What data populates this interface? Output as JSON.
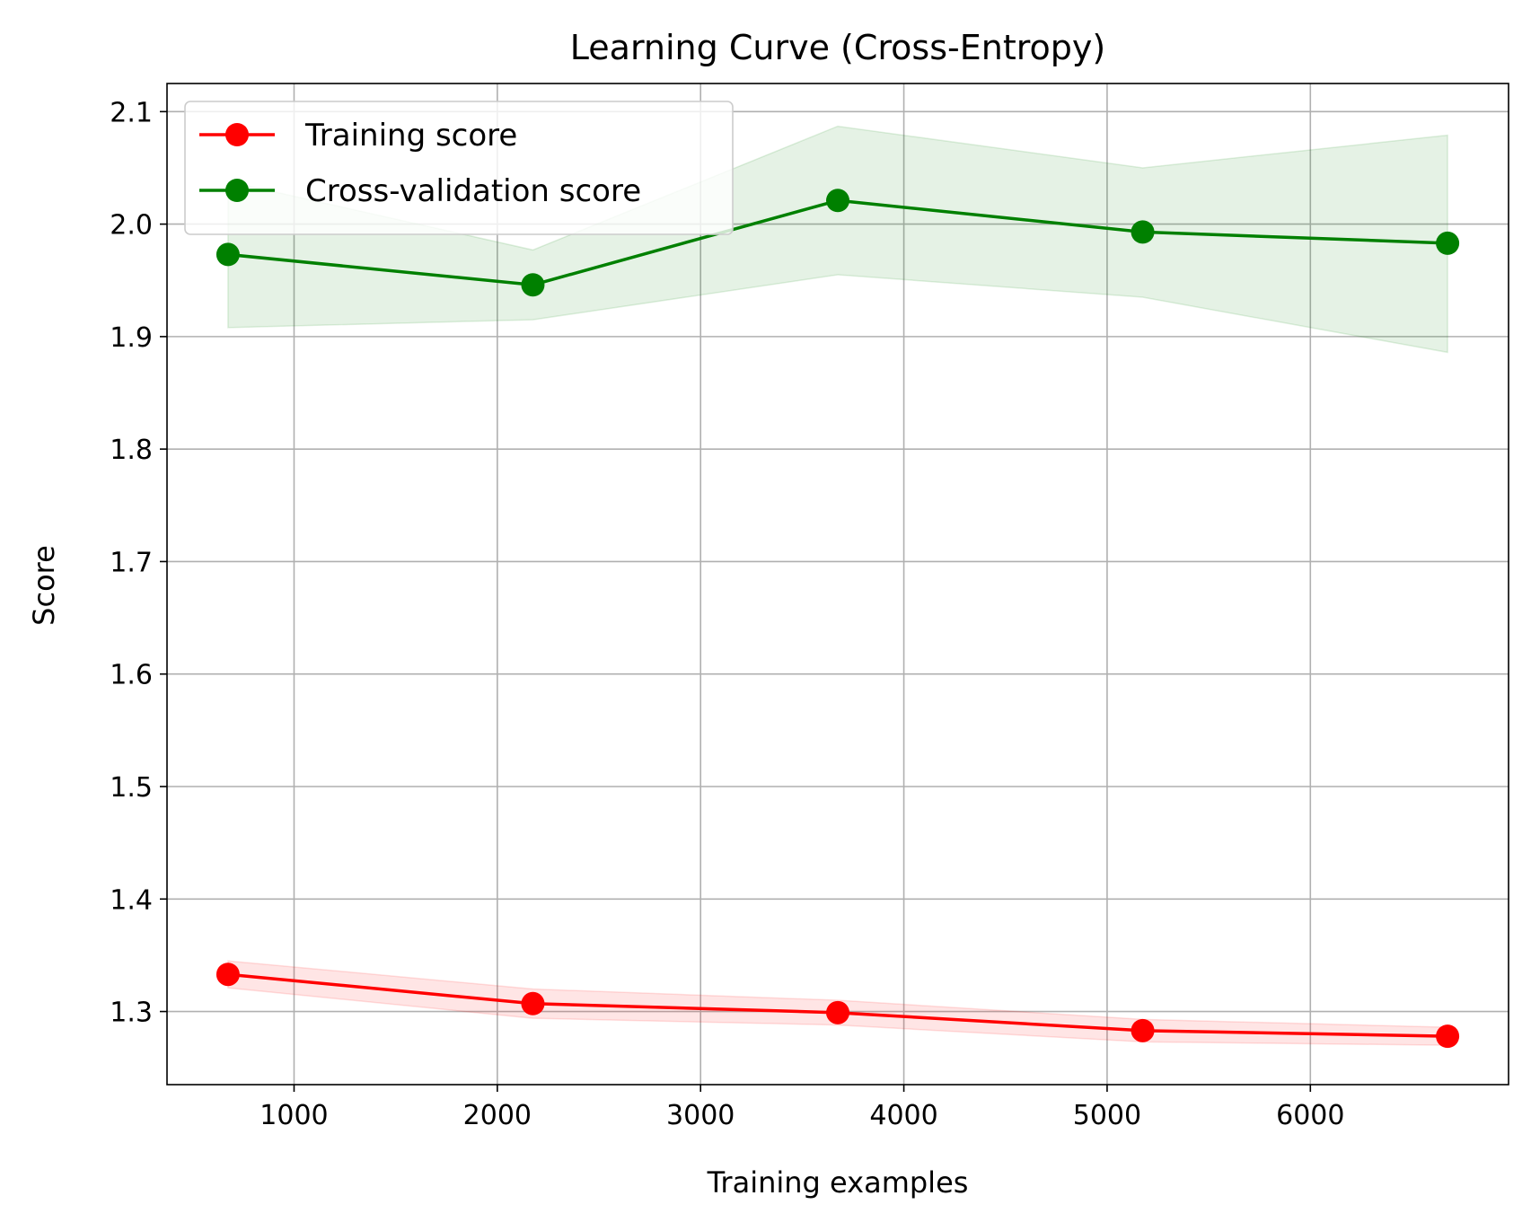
{
  "chart_data": {
    "type": "line",
    "title": "Learning Curve (Cross-Entropy)",
    "xlabel": "Training examples",
    "ylabel": "Score",
    "xlim": [
      375,
      6975
    ],
    "ylim": [
      1.235,
      2.125
    ],
    "xticks": [
      1000,
      2000,
      3000,
      4000,
      5000,
      6000
    ],
    "yticks": [
      1.3,
      1.4,
      1.5,
      1.6,
      1.7,
      1.8,
      1.9,
      2.0,
      2.1
    ],
    "xtick_labels": [
      "1000",
      "2000",
      "3000",
      "4000",
      "5000",
      "6000"
    ],
    "ytick_labels": [
      "1.3",
      "1.4",
      "1.5",
      "1.6",
      "1.7",
      "1.8",
      "1.9",
      "2.0",
      "2.1"
    ],
    "grid": true,
    "legend_position": "top-left",
    "x": [
      675,
      2175,
      3675,
      5175,
      6675
    ],
    "series": [
      {
        "name": "Training score",
        "color": "#ff0000",
        "band_color": "#ff0000",
        "values": [
          1.333,
          1.307,
          1.299,
          1.283,
          1.278
        ],
        "upper": [
          1.345,
          1.32,
          1.31,
          1.293,
          1.286
        ],
        "lower": [
          1.321,
          1.294,
          1.288,
          1.273,
          1.27
        ]
      },
      {
        "name": "Cross-validation score",
        "color": "#008000",
        "band_color": "#008000",
        "values": [
          1.973,
          1.946,
          2.021,
          1.993,
          1.983
        ],
        "upper": [
          2.038,
          1.977,
          2.087,
          2.05,
          2.079
        ],
        "lower": [
          1.908,
          1.915,
          1.955,
          1.935,
          1.886
        ]
      }
    ]
  }
}
